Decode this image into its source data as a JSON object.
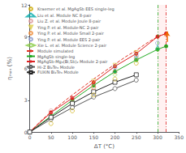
{
  "chart_data": {
    "type": "line",
    "xlabel": "ΔT (°C)",
    "ylabel": "ηₘₐₓ (%)",
    "xlim": [
      0,
      350
    ],
    "ylim": [
      0,
      12
    ],
    "xticks": [
      0,
      50,
      100,
      150,
      200,
      250,
      300,
      350
    ],
    "yticks": [
      0,
      3,
      6,
      9,
      12
    ],
    "grid": false,
    "legend": "upper left",
    "series": [
      {
        "name": "Kraemer et al. MgAgSb EES single-leg",
        "type": "scatter",
        "marker": "open-circle",
        "line_style": "none",
        "color": "#ccaa00",
        "x": [
          50,
          100,
          150,
          200,
          250
        ],
        "values": [
          0.8,
          2.0,
          3.5,
          5.0,
          6.5
        ]
      },
      {
        "name": "Liu et al. Module NC 8-pair",
        "type": "scatter",
        "marker": "open-triangle",
        "line_style": "none",
        "color": "#00aaaa",
        "x": [
          200,
          250,
          300
        ],
        "values": [
          5.8,
          7.0,
          8.0
        ]
      },
      {
        "name": "Liu Z. et al. Module Joule 8-pair",
        "type": "scatter",
        "marker": "open-circle",
        "line_style": "none",
        "color": "#dd9999",
        "x": [
          50,
          100,
          150
        ],
        "values": [
          2.0,
          3.1,
          4.3
        ]
      },
      {
        "name": "Ying P. et al. Module-NC 2-pair",
        "type": "scatter",
        "marker": "open-triangle-down",
        "line_style": "none",
        "color": "#ddcc44",
        "x": [
          150,
          200,
          250
        ],
        "values": [
          4.8,
          6.3,
          7.5
        ]
      },
      {
        "name": "Ying P. et al. Module Small 2-pair",
        "type": "scatter",
        "marker": "open-circle",
        "line_style": "none",
        "color": "#ee8833",
        "x": [
          150,
          200,
          250
        ],
        "values": [
          4.2,
          5.7,
          7.0
        ]
      },
      {
        "name": "Ying P. et al. Module EES 2-pair",
        "type": "scatter",
        "marker": "open-circle",
        "line_style": "none",
        "color": "#8899cc",
        "x": [
          200,
          250,
          300
        ],
        "values": [
          6.1,
          7.2,
          8.4
        ]
      },
      {
        "name": "Xie L. et al. Module Science 2-pair",
        "type": "scatter",
        "marker": "open-diamond",
        "line_style": "none",
        "color": "#88cc44",
        "x": [
          200,
          250,
          300
        ],
        "values": [
          5.4,
          6.8,
          7.8
        ]
      },
      {
        "name": "Module simulated",
        "type": "line",
        "marker": "none",
        "line_style": "dashed",
        "color": "#e03020",
        "x": [
          0,
          25,
          50,
          75,
          100,
          125,
          150,
          175,
          200,
          225,
          250,
          275,
          300,
          320
        ],
        "values": [
          0,
          1.0,
          1.9,
          2.7,
          3.5,
          4.25,
          5.0,
          5.7,
          6.4,
          7.1,
          7.7,
          8.4,
          9.0,
          9.3
        ]
      },
      {
        "name": "MgAgSb single-leg",
        "type": "line",
        "marker": "circle",
        "line_style": "solid",
        "color": "#22aa22",
        "x": [
          0,
          50,
          100,
          150,
          200,
          250,
          300,
          320
        ],
        "values": [
          0,
          1.5,
          3.0,
          4.4,
          5.7,
          6.8,
          7.8,
          8.1
        ]
      },
      {
        "name": "MgAgSb-Mg₃(Bi,Sb)₂ Module 2-pair",
        "type": "line",
        "marker": "circle",
        "line_style": "solid",
        "color": "#dd2020",
        "x": [
          0,
          50,
          100,
          150,
          200,
          250,
          300,
          320
        ],
        "values": [
          0,
          1.85,
          3.2,
          4.7,
          6.2,
          7.4,
          9.0,
          9.3
        ]
      },
      {
        "name": "Hi-Z Bi₂Te₃ Module",
        "type": "line",
        "marker": "open-circle",
        "line_style": "solid",
        "color": "#555555",
        "x": [
          0,
          50,
          100,
          150,
          200,
          250
        ],
        "values": [
          0,
          1.2,
          2.3,
          3.3,
          4.1,
          4.9
        ]
      },
      {
        "name": "FUXIN Bi₂Te₃ Module",
        "type": "line",
        "marker": "open-square",
        "line_style": "solid",
        "color": "#222222",
        "x": [
          0,
          50,
          100,
          150,
          200,
          250
        ],
        "values": [
          0,
          1.4,
          2.7,
          3.8,
          4.7,
          5.4
        ]
      }
    ],
    "vlines": [
      {
        "x": 300,
        "color": "#22aa22",
        "line_style": "dashdot"
      },
      {
        "x": 320,
        "color": "#dd2020",
        "line_style": "dashdot"
      }
    ],
    "shaded_region": {
      "x": [
        300,
        320
      ],
      "color": "#ffdddd"
    },
    "arrow": {
      "x": 322,
      "y": [
        8.5,
        9.5
      ],
      "color": "#ee6600"
    }
  }
}
